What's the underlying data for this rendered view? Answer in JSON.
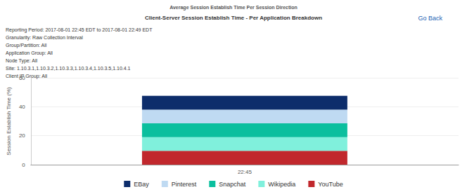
{
  "chart_data": {
    "type": "bar",
    "header": "Average Session Establish Time Per Session Direction",
    "title": "Client-Server Session Establish Time - Per Application Breakdown",
    "link": "Go Back",
    "annotations": [
      "Reporting Period: 2017-08-01 22:45 EDT to 2017-08-01 22:49 EDT",
      "Granularity: Raw Collection Interval",
      "Group/Partition: All",
      "Application Group: All",
      "Node Type: All",
      "Site: 1.10.3.1,1.10.3.2,1.10.3.3,1.10.3.4,1.10.3.5,1.10.4.1",
      "Client IP Group: All"
    ],
    "y_label": "Session Establish Time (%)",
    "categories": [
      "22:45"
    ],
    "series": [
      {
        "name": "EBay",
        "color": "#0d2d6b",
        "values": [
          9.5
        ]
      },
      {
        "name": "Pinterest",
        "color": "#bfdaf2",
        "values": [
          9.5
        ]
      },
      {
        "name": "Snapchat",
        "color": "#0bbf9e",
        "values": [
          9.5
        ]
      },
      {
        "name": "Wikipedia",
        "color": "#80f0dc",
        "values": [
          9.5
        ]
      },
      {
        "name": "YouTube",
        "color": "#c1282d",
        "values": [
          9.5
        ]
      }
    ],
    "stacked": true,
    "ylim": [
      0,
      60
    ],
    "yticks": [
      0,
      20,
      40,
      60
    ],
    "grid": true,
    "legend": "bottom"
  }
}
